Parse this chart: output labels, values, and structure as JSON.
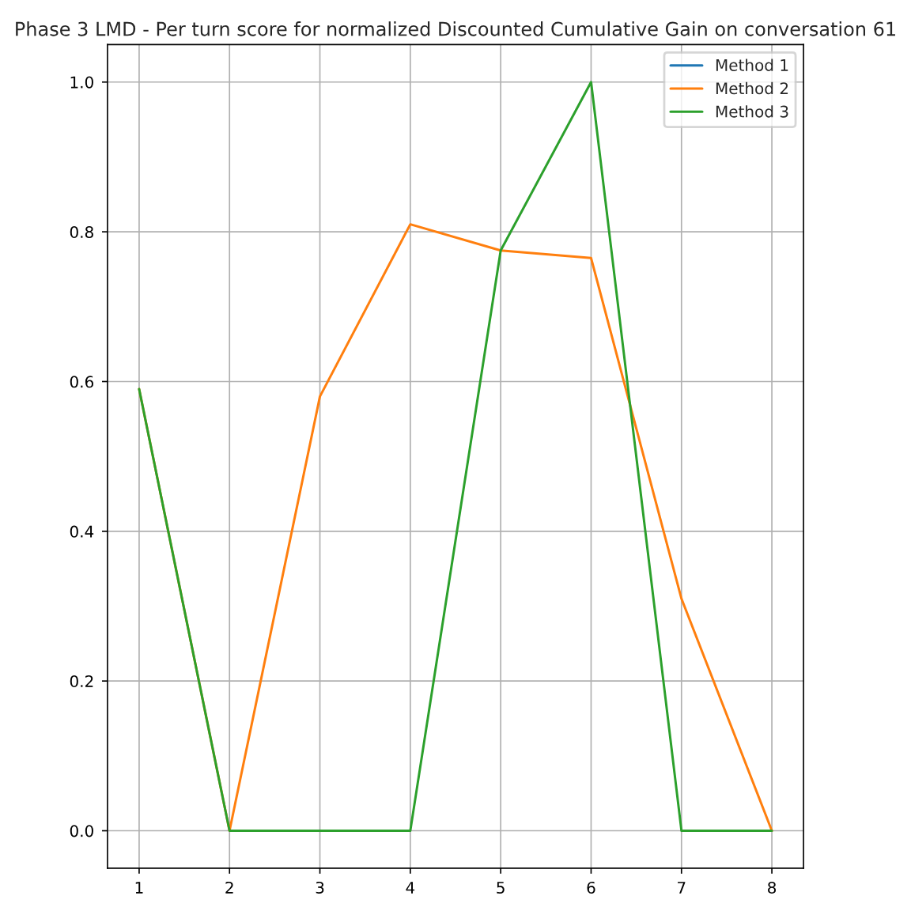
{
  "chart_data": {
    "type": "line",
    "title": "Phase 3 LMD - Per turn score for normalized Discounted Cumulative Gain on conversation 61",
    "x": [
      1,
      2,
      3,
      4,
      5,
      6,
      7,
      8
    ],
    "series": [
      {
        "name": "Method 1",
        "color": "#1f77b4",
        "values": [
          null,
          null,
          null,
          null,
          null,
          null,
          null,
          null
        ]
      },
      {
        "name": "Method 2",
        "color": "#ff7f0e",
        "values": [
          0.59,
          0.0,
          0.58,
          0.81,
          0.775,
          0.765,
          0.31,
          0.0
        ]
      },
      {
        "name": "Method 3",
        "color": "#2ca02c",
        "values": [
          0.59,
          0.0,
          0.0,
          0.0,
          0.775,
          1.0,
          0.0,
          0.0
        ]
      }
    ],
    "xlim": [
      0.65,
      8.35
    ],
    "xticks": [
      1,
      2,
      3,
      4,
      5,
      6,
      7,
      8
    ],
    "ylim": [
      -0.05,
      1.05
    ],
    "yticks": [
      {
        "value": 0,
        "label": "0.0"
      },
      {
        "value": 0.2,
        "label": "0.2"
      },
      {
        "value": 0.4,
        "label": "0.4"
      },
      {
        "value": 0.6,
        "label": "0.6"
      },
      {
        "value": 0.8,
        "label": "0.8"
      },
      {
        "value": 1,
        "label": "1.0"
      }
    ],
    "grid": true,
    "legend": "top right",
    "marker": "none",
    "line_style": "solid"
  }
}
